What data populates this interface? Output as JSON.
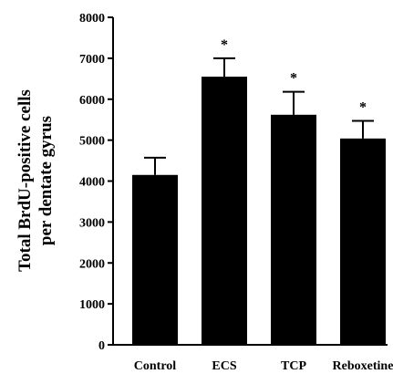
{
  "chart_data": {
    "type": "bar",
    "title": "",
    "xlabel": "",
    "ylabel_lines": [
      "Total  BrdU-positive  cells",
      "per  dentate  gyrus"
    ],
    "categories": [
      "Control",
      "ECS",
      "TCP",
      "Reboxetine"
    ],
    "values": [
      4150,
      6550,
      5620,
      5040
    ],
    "errors": [
      420,
      450,
      560,
      430
    ],
    "significance": [
      "",
      "*",
      "*",
      "*"
    ],
    "ylim": [
      0,
      8000
    ],
    "yticks": [
      0,
      1000,
      2000,
      3000,
      4000,
      5000,
      6000,
      7000,
      8000
    ],
    "bar_color": "#000000",
    "grid": false,
    "legend": "none"
  }
}
